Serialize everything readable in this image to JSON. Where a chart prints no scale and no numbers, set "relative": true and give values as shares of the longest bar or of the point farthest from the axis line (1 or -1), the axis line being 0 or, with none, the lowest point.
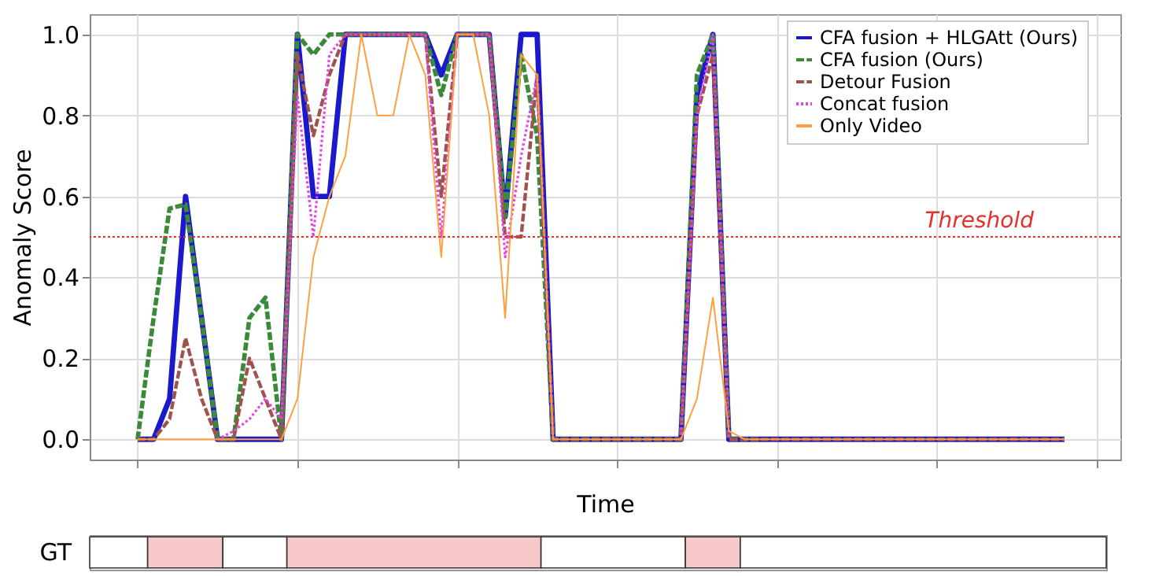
{
  "chart_data": [
    {
      "type": "line",
      "xlabel": "Time",
      "ylabel": "Anomaly Score",
      "categories": [
        null,
        null,
        null,
        null,
        null,
        null,
        null,
        null,
        null,
        null,
        null,
        null,
        null,
        null,
        null,
        null,
        null,
        null,
        null,
        null,
        null,
        null,
        null,
        null,
        null,
        null,
        null,
        null,
        null,
        null,
        null,
        null,
        null,
        null,
        null,
        null,
        null,
        null,
        null,
        null,
        null,
        null,
        null,
        null,
        null,
        null,
        null,
        null,
        null,
        null,
        null,
        null,
        null,
        null,
        null,
        null,
        null,
        null,
        null
      ],
      "ylim": [
        -0.05,
        1.05
      ],
      "yticks": [
        {
          "value": 0,
          "label": "0.0"
        },
        {
          "value": 0.2,
          "label": "0.2"
        },
        {
          "value": 0.4,
          "label": "0.4"
        },
        {
          "value": 0.6,
          "label": "0.6"
        },
        {
          "value": 0.8,
          "label": "0.8"
        },
        {
          "value": 1,
          "label": "1.0"
        }
      ],
      "grid": true,
      "legend": "top right",
      "ref_lines": [
        {
          "axis": "y",
          "value": 0.5,
          "label": "Threshold",
          "color": "#e8302a",
          "line_style": "dotted"
        }
      ],
      "series": [
        {
          "name": "CFA fusion + HLGAtt (Ours)",
          "color": "#1a1acc",
          "line_style": "solid",
          "values": [
            0,
            0,
            0.1,
            0.6,
            0.3,
            0,
            0,
            0,
            0,
            0,
            1,
            0.6,
            0.6,
            1,
            1,
            1,
            1,
            1,
            1,
            0.9,
            1,
            1,
            1,
            0.55,
            1,
            1,
            0,
            0,
            0,
            0,
            0,
            0,
            0,
            0,
            0,
            0.85,
            1,
            0,
            0,
            0,
            0,
            0,
            0,
            0,
            0,
            0,
            0,
            0,
            0,
            0,
            0,
            0,
            0,
            0,
            0,
            0,
            0,
            0,
            0
          ]
        },
        {
          "name": "CFA fusion (Ours)",
          "color": "#3a8a3a",
          "line_style": "dashed",
          "values": [
            0,
            0.3,
            0.57,
            0.58,
            0.3,
            0,
            0,
            0.3,
            0.35,
            0,
            1,
            0.95,
            1,
            1,
            1,
            1,
            1,
            1,
            1,
            0.85,
            1,
            1,
            1,
            0.55,
            0.95,
            0.75,
            0,
            0,
            0,
            0,
            0,
            0,
            0,
            0,
            0,
            0.9,
            1,
            0,
            0,
            0,
            null,
            null,
            null,
            null,
            null,
            null,
            null,
            null,
            null,
            null,
            null,
            null,
            null,
            null,
            null,
            null,
            null,
            null,
            null
          ]
        },
        {
          "name": "Detour Fusion",
          "color": "#a0524d",
          "line_style": "dashed",
          "values": [
            0,
            0,
            0.05,
            0.25,
            0.1,
            0,
            0,
            0.2,
            0.1,
            0,
            0.95,
            0.75,
            0.9,
            1,
            1,
            1,
            1,
            1,
            1,
            0.6,
            1,
            1,
            1,
            0.5,
            0.5,
            0.9,
            0,
            0,
            0,
            0,
            0,
            0,
            0,
            0,
            0,
            0.8,
            0.95,
            0,
            0,
            0,
            0,
            0,
            0,
            0,
            0,
            0,
            0,
            0,
            0,
            0,
            0,
            0,
            0,
            0,
            0,
            0,
            0,
            0,
            0
          ]
        },
        {
          "name": "Concat fusion",
          "color": "#e444e4",
          "line_style": "dotted",
          "values": [
            null,
            null,
            null,
            null,
            null,
            0,
            0.02,
            0.05,
            0.1,
            0.05,
            0.85,
            0.5,
            0.95,
            1,
            1,
            1,
            1,
            1,
            1,
            0.5,
            1,
            1,
            1,
            0.45,
            0.7,
            0.9,
            0,
            null,
            null,
            null,
            null,
            null,
            null,
            null,
            0,
            0.8,
            1,
            0,
            null,
            null,
            null,
            null,
            null,
            null,
            null,
            null,
            null,
            null,
            null,
            null,
            null,
            null,
            null,
            null,
            null,
            null,
            null,
            null,
            null
          ]
        },
        {
          "name": "Only Video",
          "color": "#ffa040",
          "line_style": "solid",
          "values": [
            0,
            0,
            0,
            0,
            0,
            0,
            0,
            0,
            0,
            0,
            0.1,
            0.45,
            0.6,
            0.7,
            1,
            0.8,
            0.8,
            1,
            0.9,
            0.45,
            1,
            1,
            0.8,
            0.3,
            0.95,
            0.9,
            0,
            0,
            0,
            0,
            0,
            0,
            0,
            0,
            0,
            0.1,
            0.35,
            0.02,
            0,
            0,
            0,
            0,
            0,
            0,
            0,
            0,
            0,
            0,
            0,
            0,
            0,
            0,
            0,
            0,
            0,
            0,
            0,
            0,
            0
          ]
        }
      ]
    },
    {
      "type": "bar",
      "orientation": "horizontal",
      "stacked": true,
      "relative": true,
      "categories": [
        "GT"
      ],
      "series": [
        {
          "color": "#ffffff",
          "values": [
            0.057
          ]
        },
        {
          "color": "#f7c8c8",
          "values": [
            0.074
          ]
        },
        {
          "color": "#ffffff",
          "values": [
            0.063
          ]
        },
        {
          "color": "#f7c8c8",
          "values": [
            0.25
          ]
        },
        {
          "color": "#ffffff",
          "values": [
            0.142
          ]
        },
        {
          "color": "#f7c8c8",
          "values": [
            0.054
          ]
        },
        {
          "color": "#ffffff",
          "values": [
            0.36
          ]
        }
      ]
    }
  ]
}
